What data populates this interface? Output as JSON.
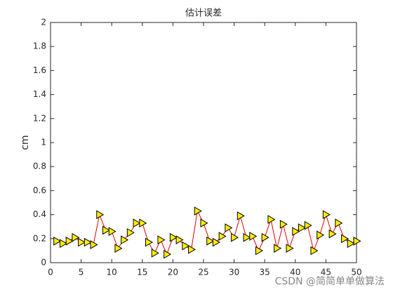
{
  "chart_data": {
    "type": "line",
    "title": "估计误差",
    "y_label": "cm",
    "x": [
      1,
      2,
      3,
      4,
      5,
      6,
      7,
      8,
      9,
      10,
      11,
      12,
      13,
      14,
      15,
      16,
      17,
      18,
      19,
      20,
      21,
      22,
      23,
      24,
      25,
      26,
      27,
      28,
      29,
      30,
      31,
      32,
      33,
      34,
      35,
      36,
      37,
      38,
      39,
      40,
      41,
      42,
      43,
      44,
      45,
      46,
      47,
      48,
      49,
      50
    ],
    "values": [
      0.18,
      0.16,
      0.18,
      0.21,
      0.17,
      0.17,
      0.15,
      0.4,
      0.27,
      0.26,
      0.12,
      0.19,
      0.25,
      0.33,
      0.33,
      0.17,
      0.08,
      0.19,
      0.07,
      0.21,
      0.19,
      0.14,
      0.11,
      0.43,
      0.33,
      0.18,
      0.17,
      0.22,
      0.29,
      0.21,
      0.39,
      0.21,
      0.22,
      0.1,
      0.21,
      0.36,
      0.12,
      0.32,
      0.12,
      0.26,
      0.29,
      0.31,
      0.1,
      0.23,
      0.4,
      0.24,
      0.33,
      0.2,
      0.16,
      0.18
    ],
    "color": "#e00000",
    "marker_color": "#ffee00",
    "xlim": [
      0,
      50
    ],
    "xticks": [
      0,
      5,
      10,
      15,
      20,
      25,
      30,
      35,
      40,
      45,
      50
    ],
    "ylim": [
      0,
      2
    ],
    "yticks": [
      0,
      0.2,
      0.4,
      0.6,
      0.8,
      1,
      1.2,
      1.4,
      1.6,
      1.8,
      2
    ],
    "grid": false
  },
  "watermark": "CSDN @简简单单做算法"
}
